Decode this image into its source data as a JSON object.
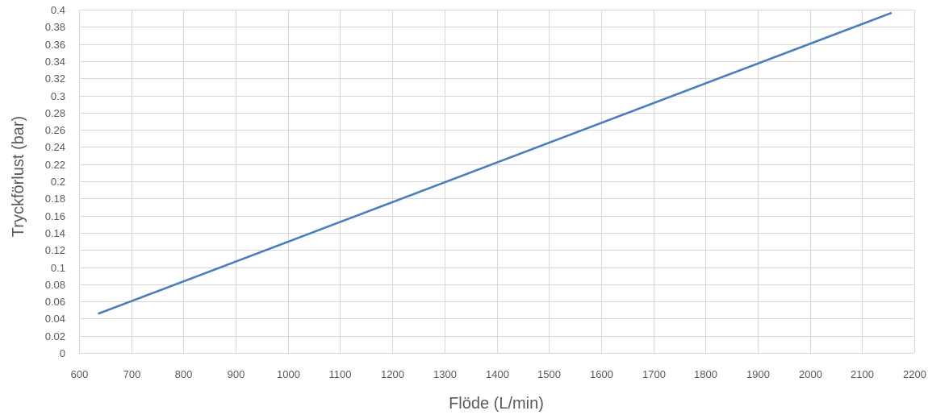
{
  "chart_data": {
    "type": "line",
    "xlabel": "Flöde (L/min)",
    "ylabel": "Tryckförlust  (bar)",
    "xlim": [
      600,
      2200
    ],
    "ylim": [
      0,
      0.4
    ],
    "x_ticks": [
      "600",
      "700",
      "800",
      "900",
      "1000",
      "1100",
      "1200",
      "1300",
      "1400",
      "1500",
      "1600",
      "1700",
      "1800",
      "1900",
      "2000",
      "2100",
      "2200"
    ],
    "y_ticks": [
      "0",
      "0.02",
      "0.04",
      "0.06",
      "0.08",
      "0.1",
      "0.12",
      "0.14",
      "0.16",
      "0.18",
      "0.2",
      "0.22",
      "0.24",
      "0.26",
      "0.28",
      "0.3",
      "0.32",
      "0.34",
      "0.36",
      "0.38",
      "0.4"
    ],
    "grid": true,
    "legend": "none",
    "series": [
      {
        "color": "#4a7ebb",
        "x": [
          638,
          2155
        ],
        "y": [
          0.046,
          0.396
        ]
      }
    ]
  }
}
